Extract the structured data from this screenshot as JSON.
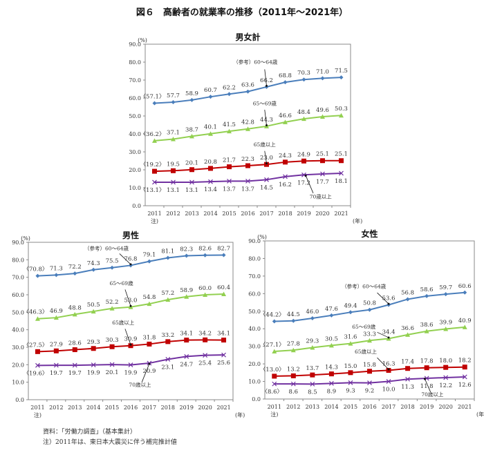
{
  "title": "図６　高齢者の就業率の推移（2011年～2021年）",
  "footer": {
    "source": "資料：「労働力調査」（基本集計）",
    "note": "注）2011年は、東日本大震災に伴う補完推計値"
  },
  "colors": {
    "60-64": "#4a7ebb",
    "65-69": "#92d050",
    "65plus": "#c00000",
    "70plus": "#7030a0"
  },
  "chart_data": [
    {
      "type": "line",
      "title": "男女計",
      "ylabel": "(%)",
      "xlabel": "(年)",
      "first_x_note": "注)",
      "categories": [
        "2011",
        "2012",
        "2013",
        "2014",
        "2015",
        "2016",
        "2017",
        "2018",
        "2019",
        "2020",
        "2021"
      ],
      "ylim": [
        0,
        90
      ],
      "yticks": [
        "0.0",
        "10.0",
        "20.0",
        "30.0",
        "40.0",
        "50.0",
        "60.0",
        "70.0",
        "80.0",
        "90.0"
      ],
      "grid": false,
      "series": [
        {
          "name": "（参考）60～64歳",
          "key": "60-64",
          "marker": "diamond",
          "values": [
            57.1,
            57.7,
            58.9,
            60.7,
            62.2,
            63.6,
            66.2,
            68.8,
            70.3,
            71.0,
            71.5
          ]
        },
        {
          "name": "65～69歳",
          "key": "65-69",
          "marker": "triangle",
          "values": [
            36.2,
            37.1,
            38.7,
            40.1,
            41.5,
            42.8,
            44.3,
            46.6,
            48.4,
            49.6,
            50.3
          ]
        },
        {
          "name": "65歳以上",
          "key": "65plus",
          "marker": "square",
          "values": [
            19.2,
            19.5,
            20.1,
            20.8,
            21.7,
            22.3,
            23.0,
            24.3,
            24.9,
            25.1,
            25.1
          ]
        },
        {
          "name": "70歳以上",
          "key": "70plus",
          "marker": "x",
          "values": [
            13.1,
            13.1,
            13.1,
            13.4,
            13.7,
            13.7,
            14.5,
            16.2,
            17.2,
            17.7,
            18.1
          ]
        }
      ]
    },
    {
      "type": "line",
      "title": "男性",
      "ylabel": "(%)",
      "xlabel": "(年)",
      "first_x_note": "注)",
      "categories": [
        "2011",
        "2012",
        "2013",
        "2014",
        "2015",
        "2016",
        "2017",
        "2018",
        "2019",
        "2020",
        "2021"
      ],
      "ylim": [
        0,
        90
      ],
      "yticks": [
        "0.0",
        "10.0",
        "20.0",
        "30.0",
        "40.0",
        "50.0",
        "60.0",
        "70.0",
        "80.0",
        "90.0"
      ],
      "grid": false,
      "series": [
        {
          "name": "（参考）60～64歳",
          "key": "60-64",
          "marker": "diamond",
          "values": [
            70.8,
            71.3,
            72.2,
            74.3,
            75.5,
            76.8,
            79.1,
            81.1,
            82.3,
            82.6,
            82.7
          ]
        },
        {
          "name": "65～69歳",
          "key": "65-69",
          "marker": "triangle",
          "values": [
            46.3,
            46.9,
            48.8,
            50.5,
            52.2,
            53.0,
            54.8,
            57.2,
            58.9,
            60.0,
            60.4
          ]
        },
        {
          "name": "65歳以上",
          "key": "65plus",
          "marker": "square",
          "values": [
            27.5,
            27.9,
            28.6,
            29.3,
            30.3,
            30.9,
            31.8,
            33.2,
            34.1,
            34.2,
            34.1
          ]
        },
        {
          "name": "70歳以上",
          "key": "70plus",
          "marker": "x",
          "values": [
            19.6,
            19.7,
            19.7,
            19.9,
            20.1,
            19.9,
            20.9,
            23.1,
            24.7,
            25.4,
            25.6
          ]
        }
      ]
    },
    {
      "type": "line",
      "title": "女性",
      "ylabel": "(%)",
      "xlabel": "(年)",
      "first_x_note": "注)",
      "categories": [
        "2011",
        "2012",
        "2013",
        "2014",
        "2015",
        "2016",
        "2017",
        "2018",
        "2019",
        "2020",
        "2021"
      ],
      "ylim": [
        0,
        90
      ],
      "yticks": [
        "0.0",
        "10.0",
        "20.0",
        "30.0",
        "40.0",
        "50.0",
        "60.0",
        "70.0",
        "80.0",
        "90.0"
      ],
      "grid": false,
      "series": [
        {
          "name": "（参考）60～64歳",
          "key": "60-64",
          "marker": "diamond",
          "values": [
            44.2,
            44.5,
            46.0,
            47.6,
            49.4,
            50.8,
            53.6,
            56.8,
            58.6,
            59.7,
            60.6
          ]
        },
        {
          "name": "65～69歳",
          "key": "65-69",
          "marker": "triangle",
          "values": [
            27.1,
            27.8,
            29.3,
            30.5,
            31.6,
            33.3,
            34.4,
            36.6,
            38.6,
            39.9,
            40.9
          ]
        },
        {
          "name": "65歳以上",
          "key": "65plus",
          "marker": "square",
          "values": [
            13.0,
            13.2,
            13.7,
            14.3,
            15.0,
            15.8,
            16.3,
            17.4,
            17.8,
            18.0,
            18.2
          ]
        },
        {
          "name": "70歳以上",
          "key": "70plus",
          "marker": "x",
          "values": [
            8.6,
            8.6,
            8.5,
            8.9,
            9.3,
            9.2,
            10.0,
            11.3,
            11.8,
            12.2,
            12.6
          ]
        }
      ]
    }
  ]
}
